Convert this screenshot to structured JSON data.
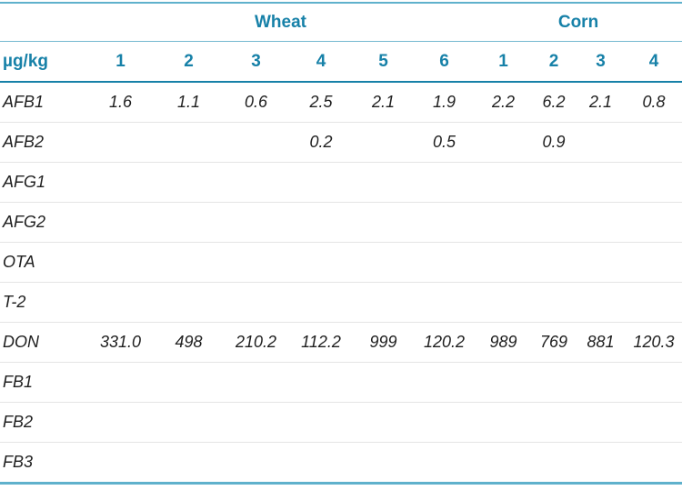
{
  "accent": {
    "header_text_color": "#1781a8",
    "outer_rule_color": "#5fb1cc",
    "group_rule_color": "#74b9d0",
    "header_rule_color": "#1781a8",
    "row_separator_color": "#e4e4e4",
    "data_text_color": "#1e1e1e"
  },
  "table": {
    "unit_label": "µg/kg",
    "groups": [
      {
        "label": "Wheat",
        "span": 6
      },
      {
        "label": "Corn",
        "span": 4
      }
    ],
    "sample_columns": [
      "1",
      "2",
      "3",
      "4",
      "5",
      "6",
      "1",
      "2",
      "3",
      "4"
    ],
    "rows": [
      {
        "label": "AFB1",
        "values": [
          "1.6",
          "1.1",
          "0.6",
          "2.5",
          "2.1",
          "1.9",
          "2.2",
          "6.2",
          "2.1",
          "0.8"
        ]
      },
      {
        "label": "AFB2",
        "values": [
          "",
          "",
          "",
          "0.2",
          "",
          "0.5",
          "",
          "0.9",
          "",
          ""
        ]
      },
      {
        "label": "AFG1",
        "values": [
          "",
          "",
          "",
          "",
          "",
          "",
          "",
          "",
          "",
          ""
        ]
      },
      {
        "label": "AFG2",
        "values": [
          "",
          "",
          "",
          "",
          "",
          "",
          "",
          "",
          "",
          ""
        ]
      },
      {
        "label": "OTA",
        "values": [
          "",
          "",
          "",
          "",
          "",
          "",
          "",
          "",
          "",
          ""
        ]
      },
      {
        "label": "T-2",
        "values": [
          "",
          "",
          "",
          "",
          "",
          "",
          "",
          "",
          "",
          ""
        ]
      },
      {
        "label": "DON",
        "values": [
          "331.0",
          "498",
          "210.2",
          "112.2",
          "999",
          "120.2",
          "989",
          "769",
          "881",
          "120.3"
        ]
      },
      {
        "label": "FB1",
        "values": [
          "",
          "",
          "",
          "",
          "",
          "",
          "",
          "",
          "",
          ""
        ]
      },
      {
        "label": "FB2",
        "values": [
          "",
          "",
          "",
          "",
          "",
          "",
          "",
          "",
          "",
          ""
        ]
      },
      {
        "label": "FB3",
        "values": [
          "",
          "",
          "",
          "",
          "",
          "",
          "",
          "",
          "",
          ""
        ]
      }
    ]
  },
  "chart_data": {
    "type": "table",
    "title": "",
    "unit": "µg/kg",
    "column_groups": [
      "Wheat",
      "Wheat",
      "Wheat",
      "Wheat",
      "Wheat",
      "Wheat",
      "Corn",
      "Corn",
      "Corn",
      "Corn"
    ],
    "columns": [
      "1",
      "2",
      "3",
      "4",
      "5",
      "6",
      "1",
      "2",
      "3",
      "4"
    ],
    "row_labels": [
      "AFB1",
      "AFB2",
      "AFG1",
      "AFG2",
      "OTA",
      "T-2",
      "DON",
      "FB1",
      "FB2",
      "FB3"
    ],
    "values": [
      [
        1.6,
        1.1,
        0.6,
        2.5,
        2.1,
        1.9,
        2.2,
        6.2,
        2.1,
        0.8
      ],
      [
        null,
        null,
        null,
        0.2,
        null,
        0.5,
        null,
        0.9,
        null,
        null
      ],
      [
        null,
        null,
        null,
        null,
        null,
        null,
        null,
        null,
        null,
        null
      ],
      [
        null,
        null,
        null,
        null,
        null,
        null,
        null,
        null,
        null,
        null
      ],
      [
        null,
        null,
        null,
        null,
        null,
        null,
        null,
        null,
        null,
        null
      ],
      [
        null,
        null,
        null,
        null,
        null,
        null,
        null,
        null,
        null,
        null
      ],
      [
        331.0,
        498,
        210.2,
        112.2,
        999,
        120.2,
        989,
        769,
        881,
        120.3
      ],
      [
        null,
        null,
        null,
        null,
        null,
        null,
        null,
        null,
        null,
        null
      ],
      [
        null,
        null,
        null,
        null,
        null,
        null,
        null,
        null,
        null,
        null
      ],
      [
        null,
        null,
        null,
        null,
        null,
        null,
        null,
        null,
        null,
        null
      ]
    ]
  }
}
